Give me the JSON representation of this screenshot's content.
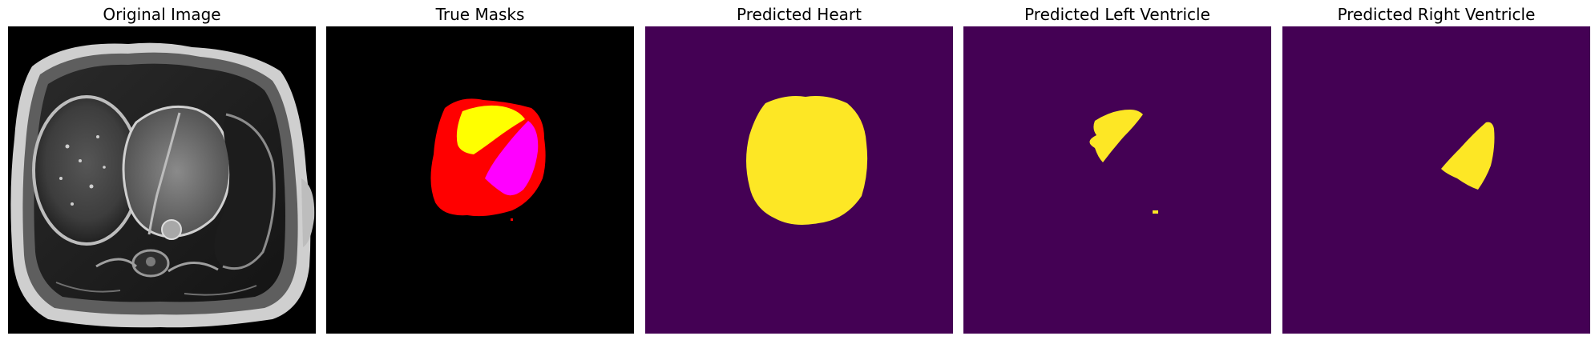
{
  "panels": [
    {
      "title": "Original Image"
    },
    {
      "title": "True Masks"
    },
    {
      "title": "Predicted Heart"
    },
    {
      "title": "Predicted Left Ventricle"
    },
    {
      "title": "Predicted Right Ventricle"
    }
  ],
  "colors": {
    "mri_background": "#000000",
    "mask_background": "#000000",
    "heart_mask": "#ff0000",
    "left_ventricle_mask": "#ffff00",
    "right_ventricle_mask": "#ff00ff",
    "prediction_background": "#440154",
    "prediction_foreground": "#fde725"
  }
}
